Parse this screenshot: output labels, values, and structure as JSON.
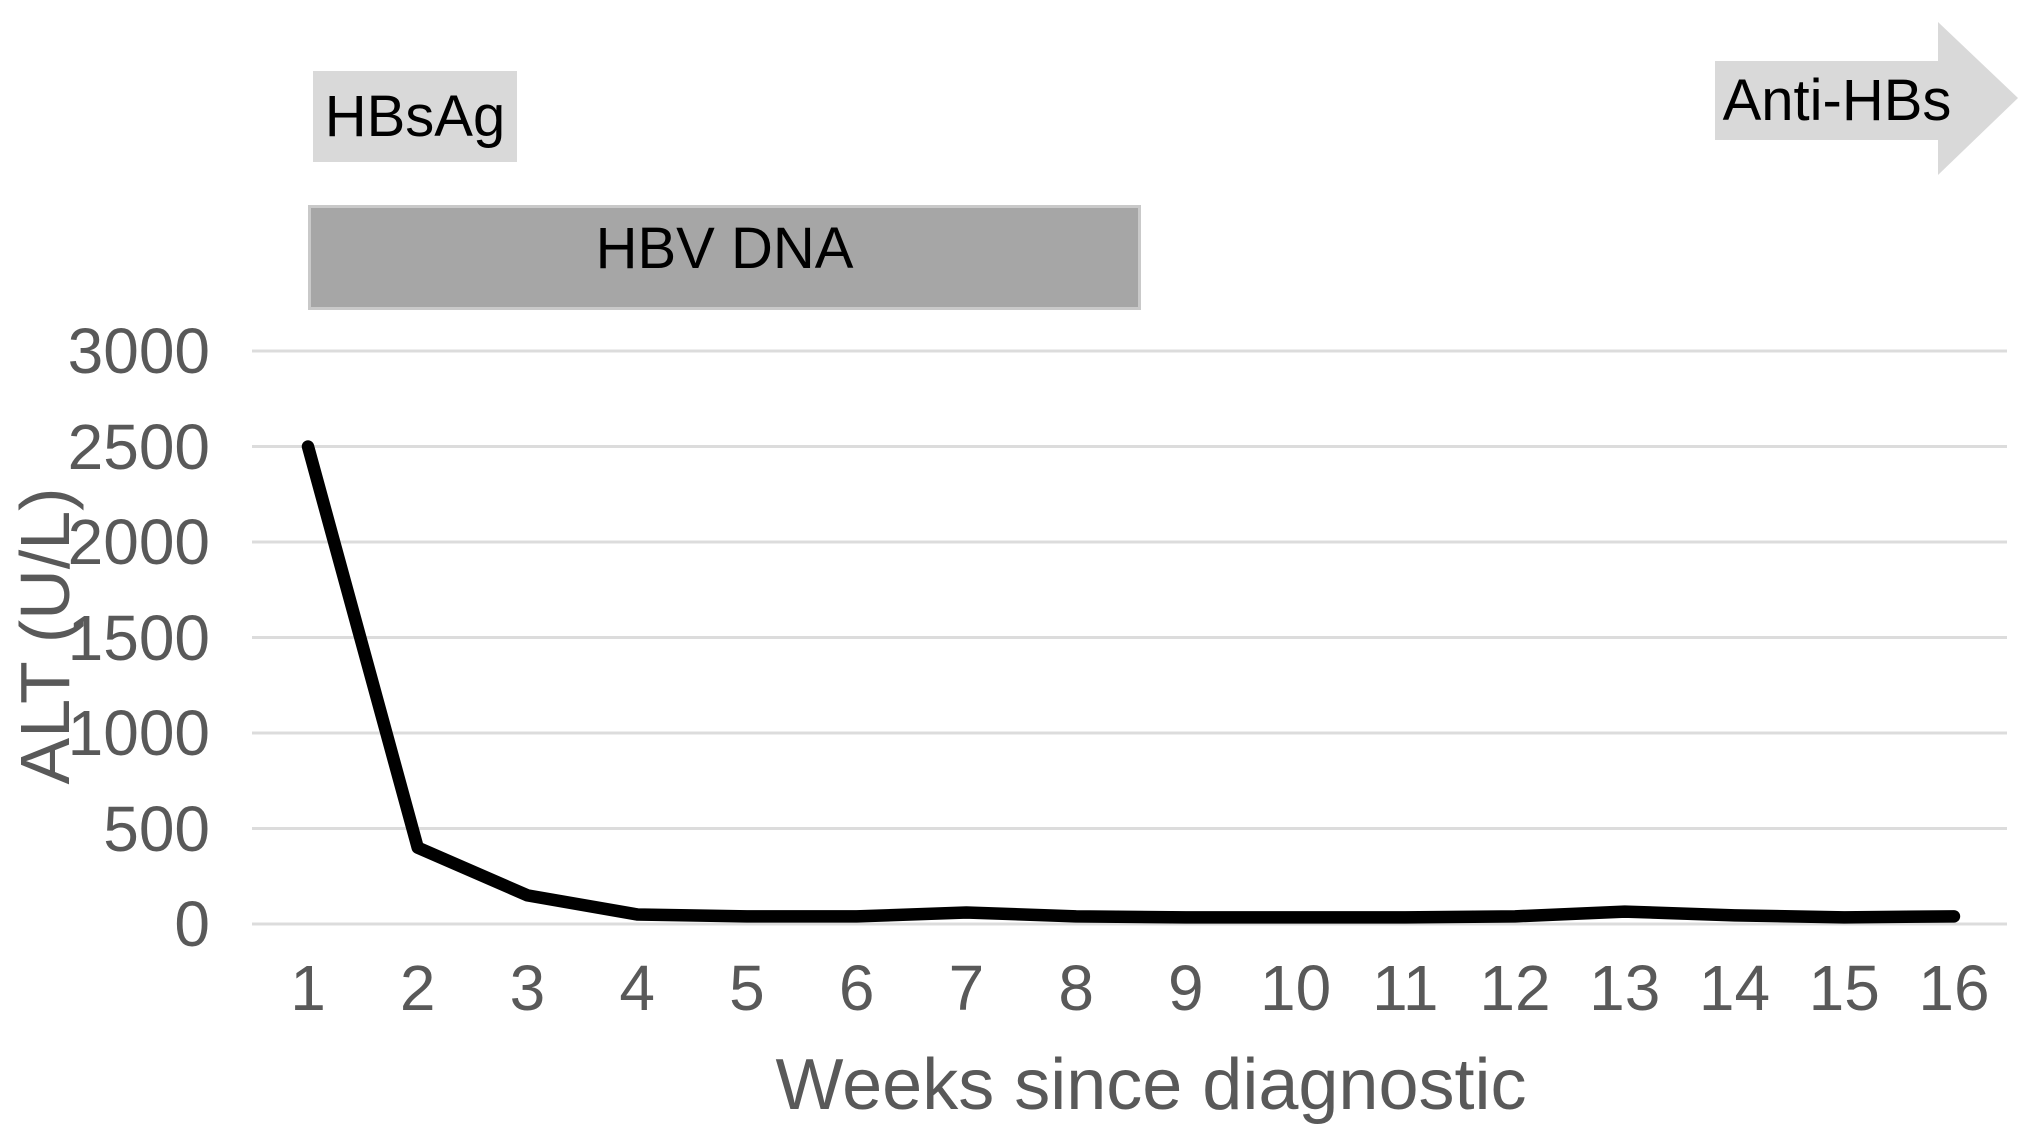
{
  "chart_data": {
    "type": "line",
    "title": "",
    "xlabel": "Weeks since diagnostic",
    "ylabel": "ALT (U/L)",
    "categories": [
      1,
      2,
      3,
      4,
      5,
      6,
      7,
      8,
      9,
      10,
      11,
      12,
      13,
      14,
      15,
      16
    ],
    "series": [
      {
        "name": "ALT",
        "values": [
          2500,
          400,
          150,
          50,
          40,
          40,
          60,
          40,
          35,
          35,
          35,
          40,
          65,
          45,
          35,
          40
        ]
      }
    ],
    "y_ticks": [
      0,
      500,
      1000,
      1500,
      2000,
      2500,
      3000
    ],
    "ylim": [
      0,
      3000
    ],
    "grid": "horizontal",
    "legend": "none",
    "annotations": [
      {
        "id": "hbsag",
        "label": "HBsAg",
        "shape": "box",
        "span_weeks": [
          1.0,
          2.9
        ]
      },
      {
        "id": "hbv-dna",
        "label": "HBV DNA",
        "shape": "bar",
        "span_weeks": [
          1.0,
          8.6
        ]
      },
      {
        "id": "anti-hbs",
        "label": "Anti-HBs",
        "shape": "arrow-right",
        "span_weeks": [
          13.8,
          16.6
        ]
      }
    ]
  },
  "colors": {
    "background": "#ffffff",
    "line": "#000000",
    "gridline": "#dcdcdc",
    "axis_text": "#595959",
    "annotation_text": "#000000",
    "light_gray_fill": "#d9d9d9",
    "medium_gray_fill": "#a6a6a6",
    "bar_border": "#c9c9c9"
  }
}
